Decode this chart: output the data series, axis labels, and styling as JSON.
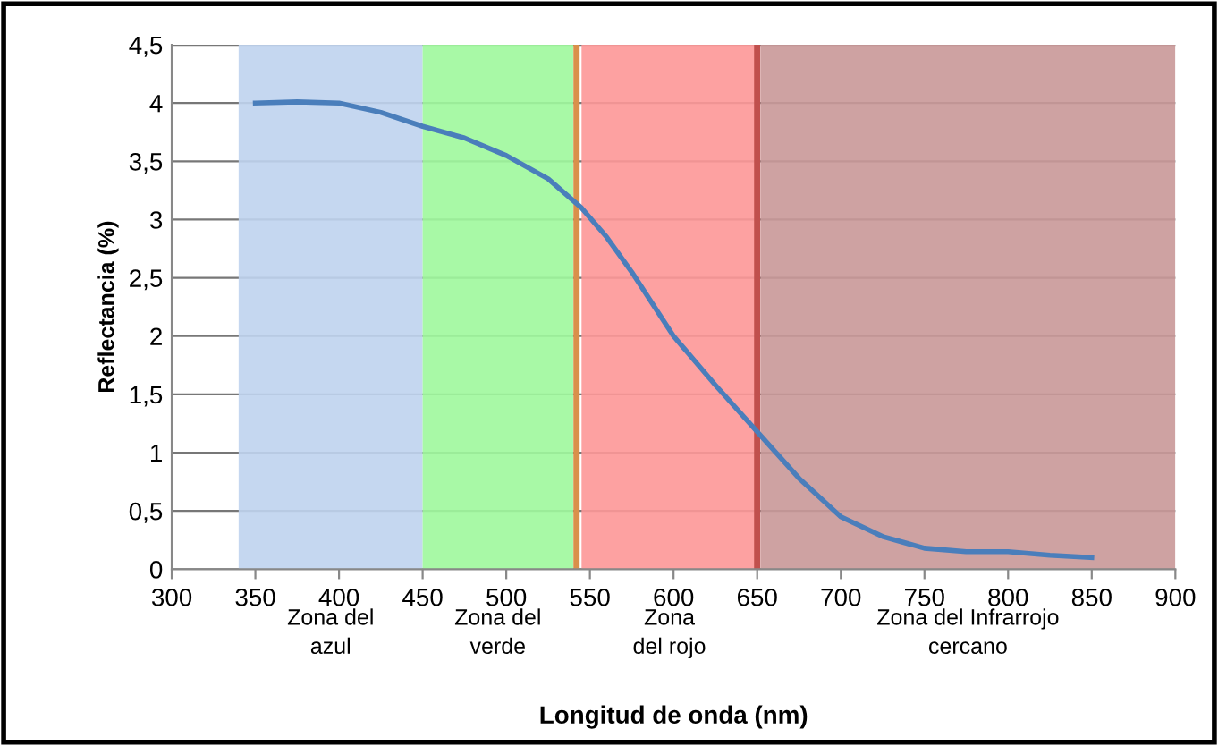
{
  "chart_data": {
    "type": "line",
    "xlabel": "Longitud de onda (nm)",
    "ylabel": "Reflectancia (%)",
    "x": [
      350,
      375,
      400,
      425,
      450,
      475,
      500,
      525,
      545,
      560,
      575,
      600,
      625,
      650,
      675,
      700,
      725,
      750,
      775,
      800,
      825,
      850
    ],
    "series": [
      {
        "color": "#4a7ebb",
        "values": [
          4.0,
          4.01,
          4.0,
          3.92,
          3.8,
          3.7,
          3.55,
          3.35,
          3.1,
          2.85,
          2.55,
          2.0,
          1.58,
          1.18,
          0.78,
          0.45,
          0.28,
          0.18,
          0.15,
          0.15,
          0.12,
          0.1
        ]
      }
    ],
    "bands": [
      {
        "axis": "x",
        "from": 340,
        "to": 450,
        "label": "Zona del\nazul",
        "color": "#bfd3ee"
      },
      {
        "axis": "x",
        "from": 450,
        "to": 540,
        "label": "Zona del\nverde",
        "color": "#9ff89c"
      },
      {
        "axis": "x",
        "from": 545,
        "to": 650,
        "label": "Zona\ndel rojo",
        "color": "#fd9797"
      },
      {
        "axis": "x",
        "from": 652,
        "to": 900,
        "label": "Zona del Infrarrojo\ncercano",
        "color": "#c99898"
      }
    ],
    "ref_lines": [
      {
        "axis": "x",
        "value": 542,
        "color": "#d9904a"
      },
      {
        "axis": "x",
        "value": 650,
        "color": "#c0504d"
      }
    ],
    "xlim": [
      300,
      900
    ],
    "xticks": [
      300,
      350,
      400,
      450,
      500,
      550,
      600,
      650,
      700,
      750,
      800,
      850,
      900
    ],
    "ylim": [
      0,
      4.5
    ],
    "yticks": [
      {
        "value": 0,
        "label": "0"
      },
      {
        "value": 0.5,
        "label": "0,5"
      },
      {
        "value": 1,
        "label": "1"
      },
      {
        "value": 1.5,
        "label": "1,5"
      },
      {
        "value": 2,
        "label": "2"
      },
      {
        "value": 2.5,
        "label": "2,5"
      },
      {
        "value": 3,
        "label": "3"
      },
      {
        "value": 3.5,
        "label": "3,5"
      },
      {
        "value": 4,
        "label": "4"
      },
      {
        "value": 4.5,
        "label": "4,5"
      }
    ],
    "grid": "y",
    "marker": "none",
    "line_style": "solid"
  }
}
